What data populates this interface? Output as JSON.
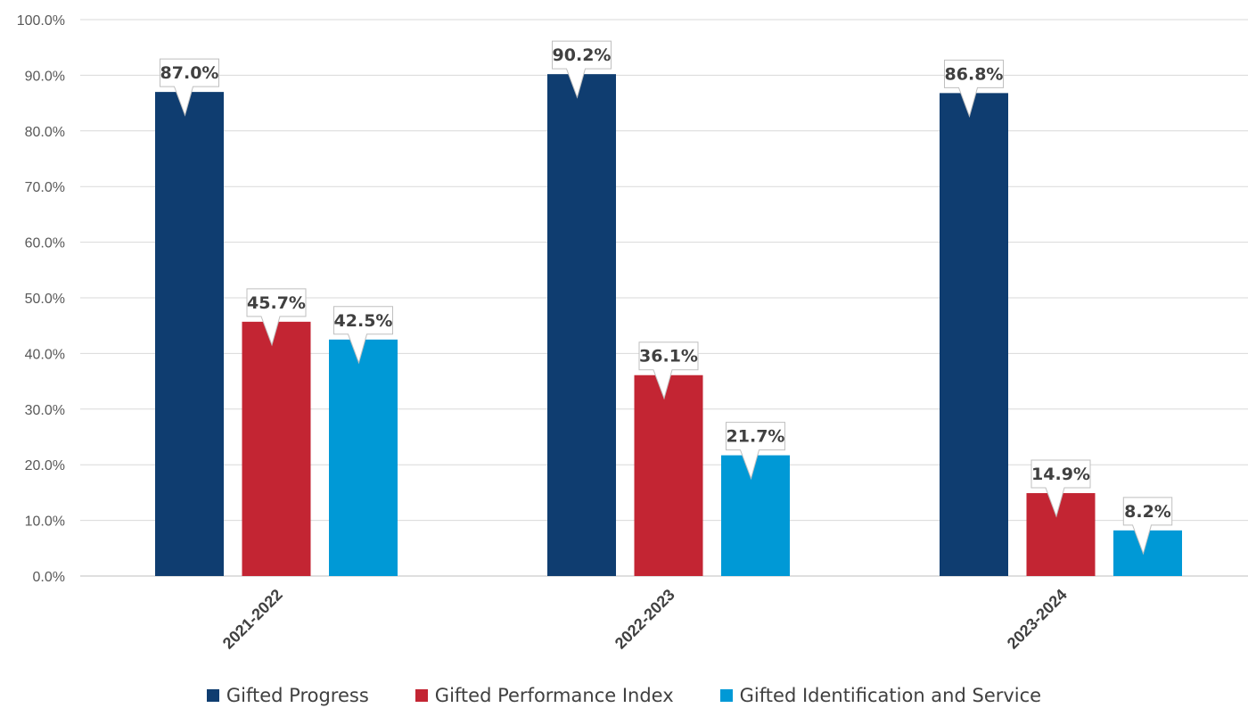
{
  "chart_data": {
    "type": "bar",
    "categories": [
      "2021-2022",
      "2022-2023",
      "2023-2024"
    ],
    "series": [
      {
        "name": "Gifted Progress",
        "values": [
          87.0,
          90.2,
          86.8
        ],
        "color": "#0f3d70"
      },
      {
        "name": "Gifted Performance Index",
        "values": [
          45.7,
          36.1,
          14.9
        ],
        "color": "#c32533"
      },
      {
        "name": "Gifted Identification and Service",
        "values": [
          42.5,
          21.7,
          8.2
        ],
        "color": "#0099d6"
      }
    ],
    "data_labels": [
      [
        "87.0%",
        "90.2%",
        "86.8%"
      ],
      [
        "45.7%",
        "36.1%",
        "14.9%"
      ],
      [
        "42.5%",
        "21.7%",
        "8.2%"
      ]
    ],
    "y_ticks": [
      "0.0%",
      "10.0%",
      "20.0%",
      "30.0%",
      "40.0%",
      "50.0%",
      "60.0%",
      "70.0%",
      "80.0%",
      "90.0%",
      "100.0%"
    ],
    "ylim": [
      0,
      100
    ],
    "title": "",
    "xlabel": "",
    "ylabel": "",
    "grid": true,
    "legend_position": "bottom"
  }
}
